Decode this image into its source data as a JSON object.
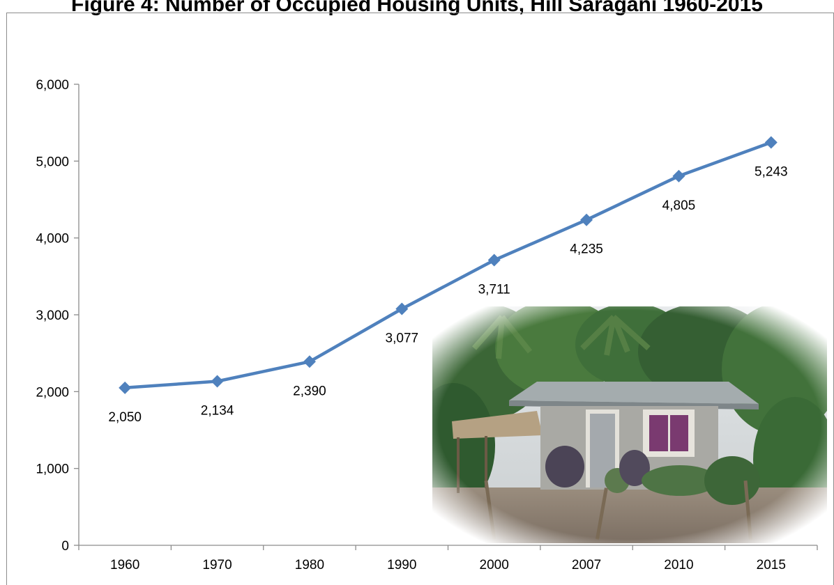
{
  "header": {
    "title": "Figure 4: Number of Occupied Housing Units, Hill Saragani 1960-2015"
  },
  "chart_data": {
    "type": "line",
    "categories": [
      "1960",
      "1970",
      "1980",
      "1990",
      "2000",
      "2007",
      "2010",
      "2015"
    ],
    "series": [
      {
        "values": [
          2050,
          2134,
          2390,
          3077,
          3711,
          4235,
          4805,
          5243
        ],
        "color": "#4f81bd",
        "marker": "diamond"
      }
    ],
    "data_labels": [
      "2,050",
      "2,134",
      "2,390",
      "3,077",
      "3,711",
      "4,235",
      "4,805",
      "5,243"
    ],
    "ylim": [
      0,
      6000
    ],
    "yticks": [
      0,
      1000,
      2000,
      3000,
      4000,
      5000,
      6000
    ],
    "ytick_labels": [
      "0",
      "1,000",
      "2,000",
      "3,000",
      "4,000",
      "5,000",
      "6,000"
    ],
    "grid": false,
    "legend": "none",
    "xlabel": "",
    "ylabel": ""
  },
  "inset_photo": {
    "subject": "single-story concrete house with corrugated metal roof among tropical trees",
    "colors": {
      "sky": "#d9dde0",
      "foliage": "#3f6b3a",
      "roof": "#9aa3a6",
      "wall": "#a7a7a3",
      "window_frame": "#e6e3dc",
      "curtain": "#7a3a70",
      "ground": "#8a7d70"
    }
  }
}
